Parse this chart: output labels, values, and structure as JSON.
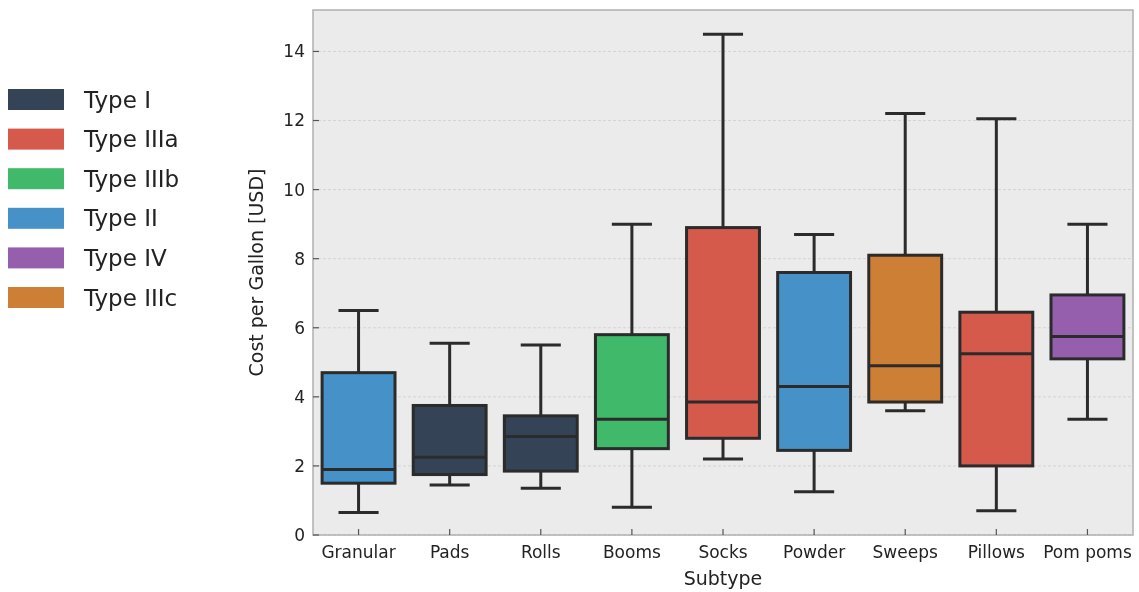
{
  "chart_data": {
    "type": "box",
    "xlabel": "Subtype",
    "ylabel": "Cost per Gallon [USD]",
    "categories": [
      "Granular",
      "Pads",
      "Rolls",
      "Booms",
      "Socks",
      "Powder",
      "Sweeps",
      "Pillows",
      "Pom poms"
    ],
    "ylim": [
      0,
      15.2
    ],
    "yticks": [
      0,
      2,
      4,
      6,
      8,
      10,
      12,
      14
    ],
    "grid": "y",
    "legend": "left",
    "series": [
      {
        "name": "Type I",
        "color": "#344456",
        "boxes": [
          null,
          {
            "low": 1.45,
            "q1": 1.75,
            "median": 2.25,
            "q3": 3.75,
            "high": 5.55
          },
          {
            "low": 1.35,
            "q1": 1.85,
            "median": 2.85,
            "q3": 3.45,
            "high": 5.5
          },
          null,
          null,
          null,
          null,
          null,
          null
        ]
      },
      {
        "name": "Type IIIa",
        "color": "#d65a4b",
        "boxes": [
          null,
          null,
          null,
          null,
          {
            "low": 2.2,
            "q1": 2.8,
            "median": 3.85,
            "q3": 8.9,
            "high": 14.5
          },
          null,
          null,
          {
            "low": 0.7,
            "q1": 2.0,
            "median": 5.25,
            "q3": 6.45,
            "high": 12.05
          },
          null
        ]
      },
      {
        "name": "Type IIIb",
        "color": "#40b96b",
        "boxes": [
          null,
          null,
          null,
          {
            "low": 0.8,
            "q1": 2.5,
            "median": 3.35,
            "q3": 5.8,
            "high": 9.0
          },
          null,
          null,
          null,
          null,
          null
        ]
      },
      {
        "name": "Type II",
        "color": "#4692c8",
        "boxes": [
          {
            "low": 0.65,
            "q1": 1.5,
            "median": 1.9,
            "q3": 4.7,
            "high": 6.5
          },
          null,
          null,
          null,
          null,
          {
            "low": 1.25,
            "q1": 2.45,
            "median": 4.3,
            "q3": 7.6,
            "high": 8.7
          },
          null,
          null,
          null
        ]
      },
      {
        "name": "Type IV",
        "color": "#955fae",
        "boxes": [
          null,
          null,
          null,
          null,
          null,
          null,
          null,
          null,
          {
            "low": 3.35,
            "q1": 5.1,
            "median": 5.75,
            "q3": 6.95,
            "high": 9.0
          }
        ]
      },
      {
        "name": "Type IIIc",
        "color": "#cd7f36",
        "boxes": [
          null,
          null,
          null,
          null,
          null,
          null,
          {
            "low": 3.6,
            "q1": 3.85,
            "median": 4.9,
            "q3": 8.1,
            "high": 12.2
          },
          null,
          null
        ]
      }
    ]
  }
}
